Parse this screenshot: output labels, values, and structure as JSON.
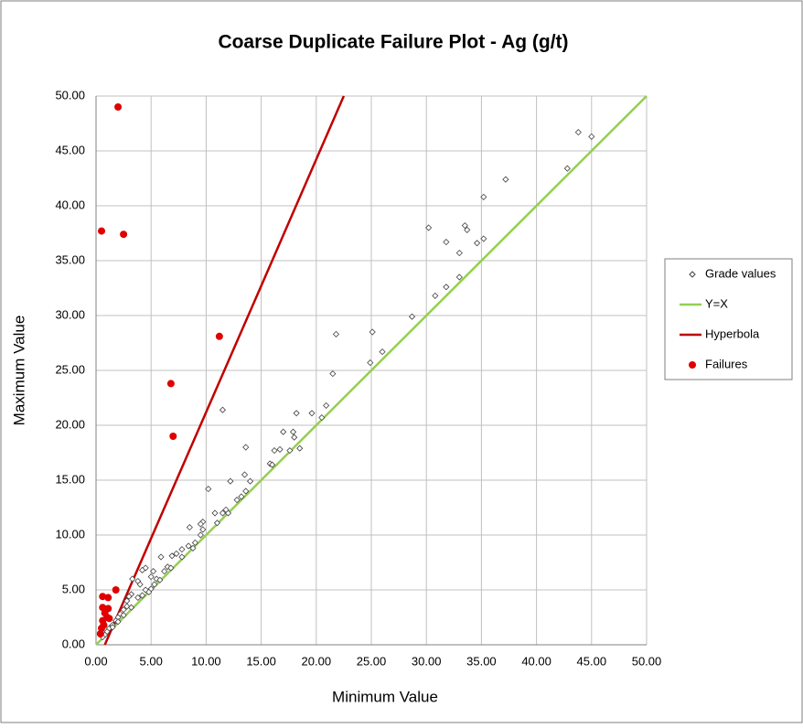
{
  "chart_data": {
    "type": "scatter",
    "title": "Coarse Duplicate Failure Plot - Ag (g/t)",
    "x_label": "Minimum Value",
    "y_label": "Maximum Value",
    "xlim": [
      0,
      50
    ],
    "ylim": [
      0,
      50
    ],
    "xticks": [
      {
        "value": 0,
        "label": "0.00"
      },
      {
        "value": 5,
        "label": "5.00"
      },
      {
        "value": 10,
        "label": "10.00"
      },
      {
        "value": 15,
        "label": "15.00"
      },
      {
        "value": 20,
        "label": "20.00"
      },
      {
        "value": 25,
        "label": "25.00"
      },
      {
        "value": 30,
        "label": "30.00"
      },
      {
        "value": 35,
        "label": "35.00"
      },
      {
        "value": 40,
        "label": "40.00"
      },
      {
        "value": 45,
        "label": "45.00"
      },
      {
        "value": 50,
        "label": "50.00"
      }
    ],
    "yticks": [
      {
        "value": 0,
        "label": "0.00"
      },
      {
        "value": 5,
        "label": "5.00"
      },
      {
        "value": 10,
        "label": "10.00"
      },
      {
        "value": 15,
        "label": "15.00"
      },
      {
        "value": 20,
        "label": "20.00"
      },
      {
        "value": 25,
        "label": "25.00"
      },
      {
        "value": 30,
        "label": "30.00"
      },
      {
        "value": 35,
        "label": "35.00"
      },
      {
        "value": 40,
        "label": "40.00"
      },
      {
        "value": 45,
        "label": "45.00"
      },
      {
        "value": 50,
        "label": "50.00"
      }
    ],
    "grid": true,
    "legend": "right",
    "series": [
      {
        "name": "Grade values",
        "color": "#404040",
        "mode": "markers",
        "marker": "diamond",
        "x": [
          45,
          43.8,
          42.8,
          37.2,
          35.2,
          30.2,
          33.5,
          33.7,
          33,
          31.8,
          34.6,
          35.2,
          31.8,
          30.8,
          33,
          28.7,
          21.8,
          25.1,
          26,
          24.9,
          21.5,
          20.9,
          20.5,
          19.6,
          18.2,
          11.5,
          17,
          17.9,
          18,
          18.5,
          17.6,
          16.7,
          16.2,
          15.8,
          16,
          13.6,
          13.5,
          14,
          13.6,
          13.2,
          12.8,
          12.2,
          11.5,
          12,
          10.2,
          10.8,
          11.8,
          11,
          9.7,
          9.5,
          8.5,
          9.7,
          9.5,
          9,
          8.4,
          8.8,
          7.8,
          7.3,
          7.8,
          6.9,
          6.5,
          6.8,
          6.2,
          5.9,
          5.2,
          4.5,
          4.2,
          3.8,
          3.3,
          4,
          4.5,
          5.5,
          5,
          5.8,
          5.3,
          5,
          4.8,
          4.2,
          3.8,
          3.2,
          3,
          2.8,
          2.8,
          3.2,
          2.5,
          2.2,
          2,
          1.8,
          1.5,
          1.2,
          1,
          0.8,
          0.6,
          1.5,
          2.5,
          2
        ],
        "values": [
          46.3,
          46.7,
          43.4,
          42.4,
          40.8,
          38,
          38.2,
          37.8,
          35.7,
          36.7,
          36.6,
          37,
          32.6,
          31.8,
          33.5,
          29.9,
          28.3,
          28.5,
          26.7,
          25.7,
          24.7,
          21.8,
          20.7,
          21.1,
          21.1,
          21.4,
          19.4,
          19.4,
          18.9,
          17.9,
          17.7,
          17.8,
          17.7,
          16.5,
          16.4,
          18,
          15.5,
          14.9,
          14,
          13.5,
          13.2,
          14.9,
          12,
          12,
          14.2,
          12,
          12.3,
          11.1,
          11.2,
          11,
          10.7,
          10.5,
          10,
          9.3,
          9,
          8.8,
          8.7,
          8.3,
          8,
          8.1,
          7.1,
          7,
          6.7,
          8,
          6.7,
          7,
          6.8,
          5.8,
          6,
          5.5,
          5,
          6,
          6.2,
          5.9,
          5.5,
          5.1,
          4.8,
          4.5,
          4.3,
          4.6,
          4.4,
          4,
          3.5,
          3.4,
          3.2,
          2.8,
          2.5,
          2.2,
          1.8,
          1.5,
          1.2,
          0.9,
          0.7,
          1.6,
          2.7,
          2.1
        ]
      },
      {
        "name": "Y=X",
        "color": "#92d050",
        "mode": "line",
        "x": [
          0,
          50
        ],
        "values": [
          0,
          50
        ]
      },
      {
        "name": "Hyperbola",
        "color": "#c00000",
        "mode": "line",
        "x": [
          0.8,
          5,
          10,
          15,
          22.5
        ],
        "values": [
          0,
          9.7,
          21.2,
          32.7,
          50
        ]
      },
      {
        "name": "Failures",
        "color": "#e00000",
        "mode": "markers",
        "marker": "circle",
        "x": [
          0.5,
          2,
          2.5,
          11.2,
          6.8,
          7,
          1.8,
          0.6,
          1.1,
          0.6,
          1.1,
          0.8,
          0.6,
          1,
          1.2,
          0.5,
          0.4,
          0.7
        ],
        "values": [
          37.7,
          49,
          37.4,
          28.1,
          23.8,
          19,
          5,
          4.4,
          4.3,
          3.4,
          3.3,
          2.9,
          2.2,
          2.5,
          2.4,
          1.5,
          1,
          1.8
        ]
      }
    ]
  }
}
